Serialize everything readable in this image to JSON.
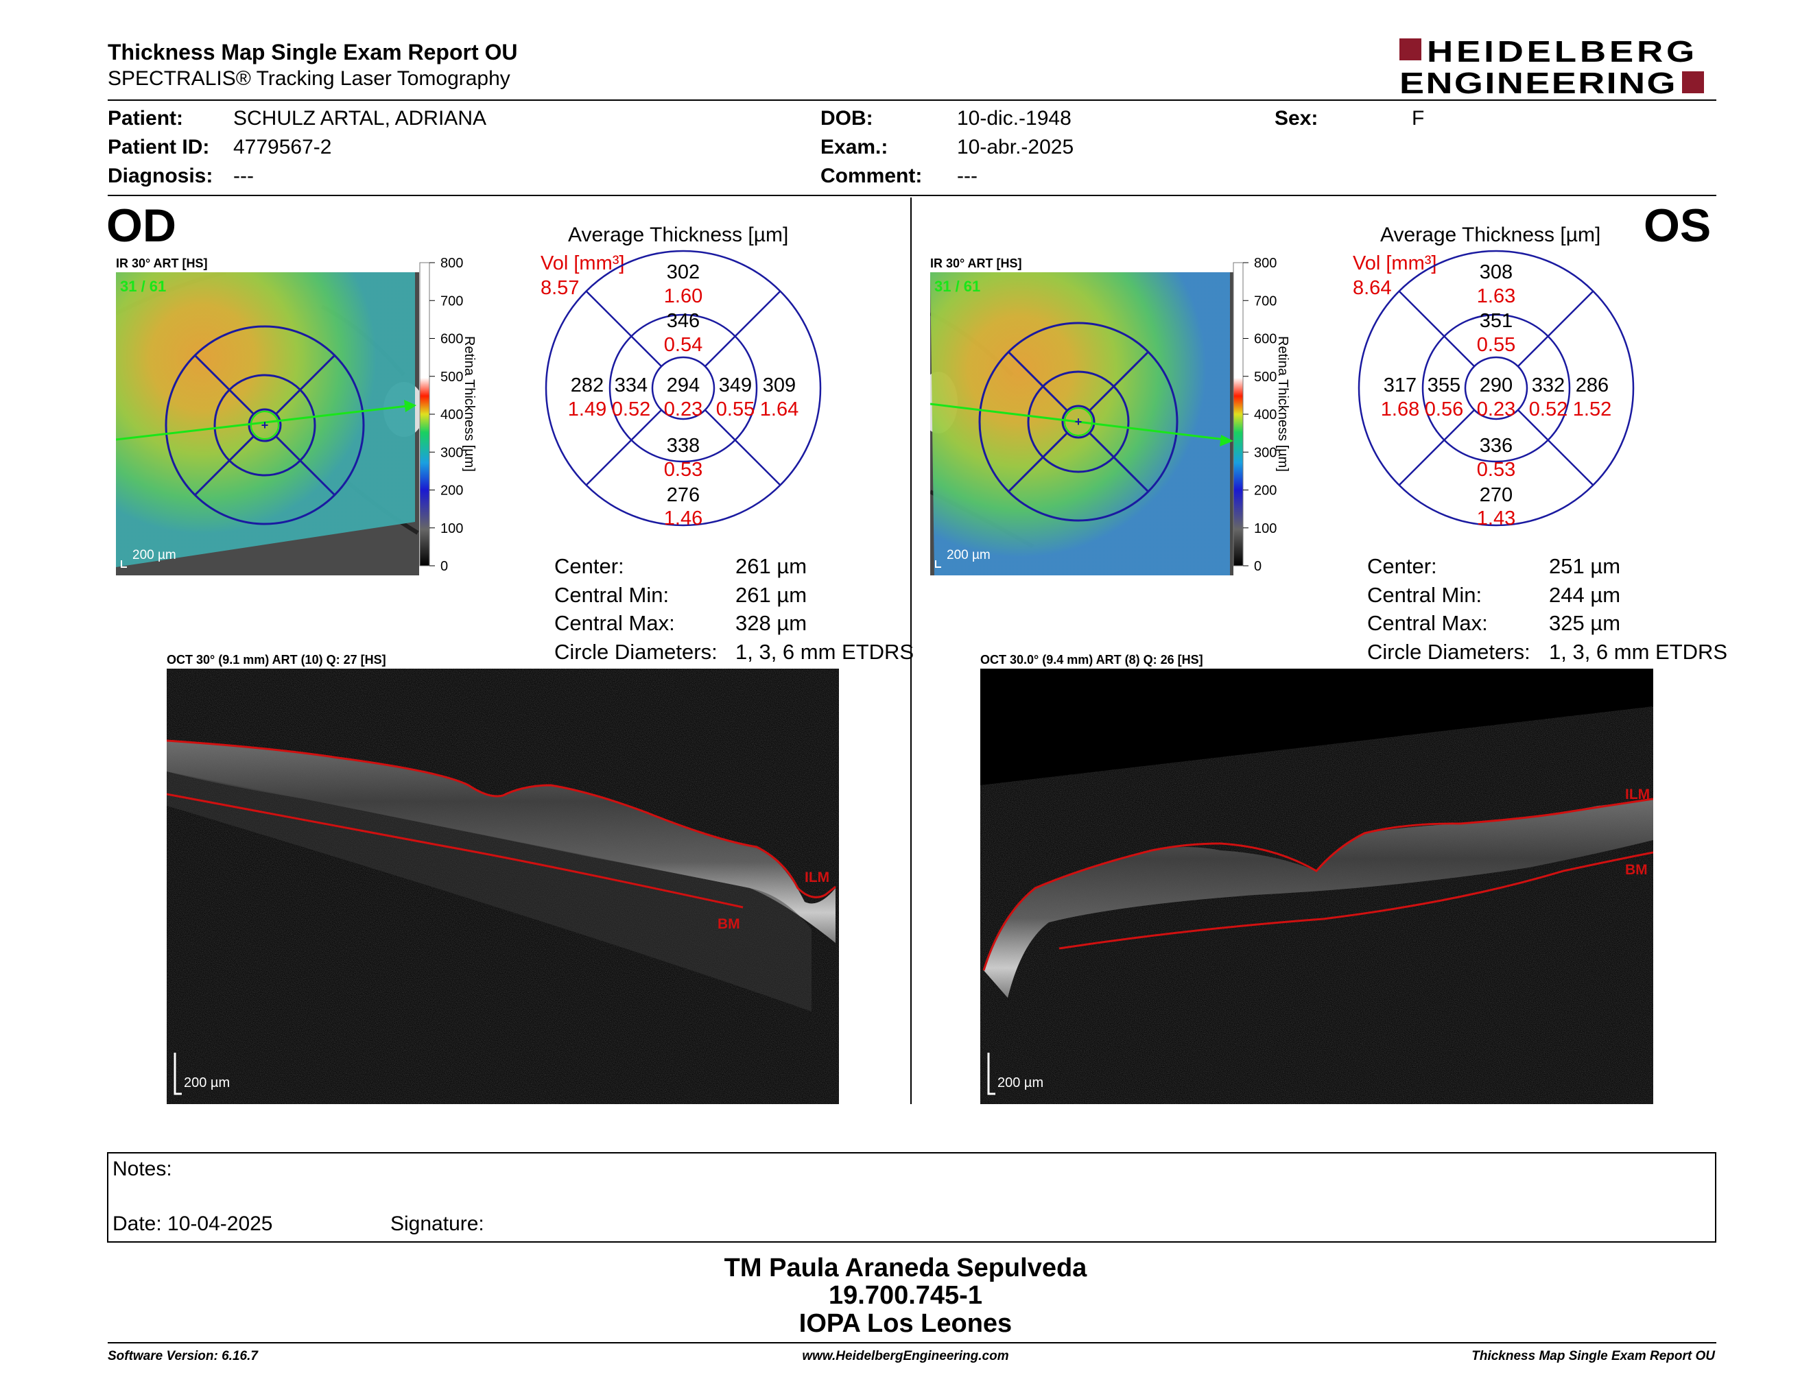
{
  "header": {
    "title": "Thickness Map Single Exam Report OU",
    "subtitle": "SPECTRALIS® Tracking Laser Tomography",
    "logo_line1": "HEIDELBERG",
    "logo_line2": "ENGINEERING"
  },
  "patient": {
    "patient_label": "Patient:",
    "patient_value": "SCHULZ ARTAL, ADRIANA",
    "id_label": "Patient ID:",
    "id_value": "4779567-2",
    "diagnosis_label": "Diagnosis:",
    "diagnosis_value": "---",
    "dob_label": "DOB:",
    "dob_value": "10-dic.-1948",
    "exam_label": "Exam.:",
    "exam_value": "10-abr.-2025",
    "comment_label": "Comment:",
    "comment_value": "---",
    "sex_label": "Sex:",
    "sex_value": "F"
  },
  "colorbar": {
    "ticks": [
      "800",
      "700",
      "600",
      "500",
      "400",
      "300",
      "200",
      "100",
      "0"
    ],
    "label": "Retina  Thickness [µm]"
  },
  "od": {
    "eye": "OD",
    "ir_label": "IR 30° ART [HS]",
    "ir_count": "31 / 61",
    "scale": "200 µm",
    "avg_title": "Average Thickness [µm]",
    "vol_label": "Vol [mm³]",
    "vol_total": "8.57",
    "sectors": {
      "center_t": "294",
      "center_v": "0.23",
      "inner_sup_t": "346",
      "inner_sup_v": "0.54",
      "inner_inf_t": "338",
      "inner_inf_v": "0.53",
      "inner_left_t": "334",
      "inner_left_v": "0.52",
      "inner_right_t": "349",
      "inner_right_v": "0.55",
      "outer_sup_t": "302",
      "outer_sup_v": "1.60",
      "outer_inf_t": "276",
      "outer_inf_v": "1.46",
      "outer_left_t": "282",
      "outer_left_v": "1.49",
      "outer_right_t": "309",
      "outer_right_v": "1.64"
    },
    "stats": {
      "center_label": "Center:",
      "center_value": "261 µm",
      "min_label": "Central Min:",
      "min_value": "261 µm",
      "max_label": "Central Max:",
      "max_value": "328 µm",
      "diam_label": "Circle Diameters:",
      "diam_value": "1, 3, 6 mm ETDRS"
    },
    "oct_label": "OCT 30° (9.1 mm) ART (10) Q: 27 [HS]",
    "ilm": "ILM",
    "bm": "BM",
    "oct_scale": "200 µm"
  },
  "os": {
    "eye": "OS",
    "ir_label": "IR 30° ART [HS]",
    "ir_count": "31 / 61",
    "scale": "200 µm",
    "avg_title": "Average Thickness [µm]",
    "vol_label": "Vol [mm³]",
    "vol_total": "8.64",
    "sectors": {
      "center_t": "290",
      "center_v": "0.23",
      "inner_sup_t": "351",
      "inner_sup_v": "0.55",
      "inner_inf_t": "336",
      "inner_inf_v": "0.53",
      "inner_left_t": "355",
      "inner_left_v": "0.56",
      "inner_right_t": "332",
      "inner_right_v": "0.52",
      "outer_sup_t": "308",
      "outer_sup_v": "1.63",
      "outer_inf_t": "270",
      "outer_inf_v": "1.43",
      "outer_left_t": "317",
      "outer_left_v": "1.68",
      "outer_right_t": "286",
      "outer_right_v": "1.52"
    },
    "stats": {
      "center_label": "Center:",
      "center_value": "251 µm",
      "min_label": "Central Min:",
      "min_value": "244 µm",
      "max_label": "Central Max:",
      "max_value": "325 µm",
      "diam_label": "Circle Diameters:",
      "diam_value": "1, 3, 6 mm ETDRS"
    },
    "oct_label": "OCT 30.0° (9.4 mm) ART (8) Q: 26 [HS]",
    "ilm": "ILM",
    "bm": "BM",
    "oct_scale": "200 µm"
  },
  "notes": {
    "notes_label": "Notes:",
    "date_label": "Date: 10-04-2025",
    "signature_label": "Signature:"
  },
  "signatory": {
    "name": "TM Paula Araneda Sepulveda",
    "id": "19.700.745-1",
    "org": "IOPA Los Leones"
  },
  "footer": {
    "software": "Software Version: 6.16.7",
    "website": "www.HeidelbergEngineering.com",
    "report": "Thickness Map Single Exam Report OU"
  },
  "colors": {
    "accent_red": "#8b1a2b",
    "vol_red": "#e00000",
    "grid_blue": "#1a1aa0",
    "ilm_red": "#d01010",
    "scan_green": "#19e619"
  }
}
